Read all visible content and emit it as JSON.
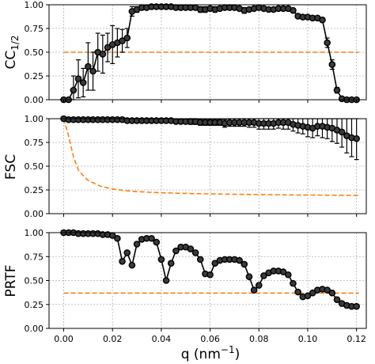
{
  "chart_data": [
    {
      "type": "line",
      "ylabel_main": "CC",
      "ylabel_sub": "1/2",
      "ylim": [
        0,
        1
      ],
      "yticks": [
        "0.00",
        "0.25",
        "0.50",
        "0.75",
        "1.00"
      ],
      "xlim": [
        -0.006,
        0.124
      ],
      "grid": true,
      "threshold": 0.5,
      "series": [
        {
          "style": "circles-with-errorbars",
          "color": "#000000",
          "x": [
            0.0,
            0.002,
            0.004,
            0.006,
            0.008,
            0.01,
            0.012,
            0.014,
            0.016,
            0.018,
            0.02,
            0.022,
            0.024,
            0.026,
            0.028,
            0.03,
            0.032,
            0.034,
            0.036,
            0.038,
            0.04,
            0.042,
            0.044,
            0.046,
            0.048,
            0.05,
            0.052,
            0.054,
            0.056,
            0.058,
            0.06,
            0.062,
            0.064,
            0.066,
            0.068,
            0.07,
            0.072,
            0.074,
            0.076,
            0.078,
            0.08,
            0.082,
            0.084,
            0.086,
            0.088,
            0.09,
            0.092,
            0.094,
            0.096,
            0.098,
            0.1,
            0.102,
            0.104,
            0.106,
            0.108,
            0.11,
            0.112,
            0.114,
            0.116,
            0.118,
            0.12
          ],
          "y": [
            0.0,
            0.0,
            0.1,
            0.22,
            0.18,
            0.35,
            0.3,
            0.5,
            0.48,
            0.55,
            0.58,
            0.6,
            0.62,
            0.65,
            0.93,
            0.95,
            0.97,
            0.97,
            0.98,
            0.98,
            0.98,
            0.98,
            0.98,
            0.97,
            0.97,
            0.97,
            0.97,
            0.97,
            0.95,
            0.95,
            0.96,
            0.95,
            0.96,
            0.97,
            0.97,
            0.97,
            0.96,
            0.94,
            0.95,
            0.96,
            0.97,
            0.96,
            0.95,
            0.95,
            0.96,
            0.96,
            0.96,
            0.94,
            0.88,
            0.87,
            0.87,
            0.86,
            0.86,
            0.84,
            0.6,
            0.37,
            0.1,
            0.01,
            0.0,
            0.0,
            0.0
          ],
          "err": [
            0.0,
            0.0,
            0.15,
            0.2,
            0.15,
            0.25,
            0.2,
            0.2,
            0.2,
            0.15,
            0.2,
            0.15,
            0.12,
            0.1,
            0.05,
            0.03,
            0.02,
            0.02,
            0.01,
            0.01,
            0.01,
            0.01,
            0.01,
            0.02,
            0.02,
            0.02,
            0.02,
            0.02,
            0.03,
            0.03,
            0.02,
            0.03,
            0.02,
            0.02,
            0.02,
            0.02,
            0.02,
            0.03,
            0.02,
            0.02,
            0.02,
            0.02,
            0.02,
            0.02,
            0.02,
            0.02,
            0.02,
            0.02,
            0.02,
            0.02,
            0.02,
            0.02,
            0.02,
            0.02,
            0.05,
            0.05,
            0.03,
            0.01,
            0.0,
            0.0,
            0.0
          ]
        },
        {
          "style": "dashed",
          "color": "#ff7f0e",
          "x": [
            0.0,
            0.121
          ],
          "y": [
            0.5,
            0.5
          ]
        }
      ]
    },
    {
      "type": "line",
      "ylabel_main": "FSC",
      "ylabel_sub": "",
      "ylim": [
        0,
        1
      ],
      "yticks": [
        "0.00",
        "0.25",
        "0.50",
        "0.75",
        "1.00"
      ],
      "xlim": [
        -0.006,
        0.124
      ],
      "grid": true,
      "series": [
        {
          "style": "circles-with-errorbars",
          "color": "#000000",
          "x": [
            0.0,
            0.002,
            0.004,
            0.006,
            0.008,
            0.01,
            0.012,
            0.014,
            0.016,
            0.018,
            0.02,
            0.022,
            0.024,
            0.026,
            0.028,
            0.03,
            0.032,
            0.034,
            0.036,
            0.038,
            0.04,
            0.042,
            0.044,
            0.046,
            0.048,
            0.05,
            0.052,
            0.054,
            0.056,
            0.058,
            0.06,
            0.062,
            0.064,
            0.066,
            0.068,
            0.07,
            0.072,
            0.074,
            0.076,
            0.078,
            0.08,
            0.082,
            0.084,
            0.086,
            0.088,
            0.09,
            0.092,
            0.094,
            0.096,
            0.098,
            0.1,
            0.102,
            0.104,
            0.106,
            0.108,
            0.11,
            0.112,
            0.114,
            0.116,
            0.118,
            0.12
          ],
          "y": [
            1.0,
            0.99,
            0.99,
            0.99,
            0.99,
            0.99,
            0.99,
            0.99,
            0.99,
            0.99,
            0.99,
            0.99,
            0.99,
            0.98,
            0.98,
            0.98,
            0.98,
            0.98,
            0.98,
            0.98,
            0.98,
            0.98,
            0.98,
            0.97,
            0.97,
            0.97,
            0.97,
            0.97,
            0.96,
            0.96,
            0.96,
            0.96,
            0.96,
            0.95,
            0.96,
            0.96,
            0.96,
            0.96,
            0.96,
            0.96,
            0.95,
            0.95,
            0.95,
            0.95,
            0.96,
            0.96,
            0.96,
            0.94,
            0.93,
            0.92,
            0.91,
            0.9,
            0.92,
            0.92,
            0.91,
            0.9,
            0.88,
            0.86,
            0.82,
            0.8,
            0.79
          ],
          "err": [
            0.0,
            0.0,
            0.0,
            0.0,
            0.0,
            0.0,
            0.0,
            0.01,
            0.01,
            0.01,
            0.01,
            0.01,
            0.01,
            0.01,
            0.01,
            0.01,
            0.02,
            0.02,
            0.02,
            0.02,
            0.02,
            0.02,
            0.02,
            0.02,
            0.02,
            0.02,
            0.03,
            0.03,
            0.03,
            0.03,
            0.03,
            0.03,
            0.03,
            0.04,
            0.04,
            0.04,
            0.04,
            0.04,
            0.05,
            0.05,
            0.06,
            0.06,
            0.06,
            0.06,
            0.06,
            0.07,
            0.07,
            0.07,
            0.08,
            0.08,
            0.1,
            0.1,
            0.1,
            0.12,
            0.12,
            0.14,
            0.14,
            0.16,
            0.18,
            0.2,
            0.22
          ]
        },
        {
          "style": "dashed",
          "color": "#ff7f0e",
          "x": [
            0.0,
            0.002,
            0.004,
            0.006,
            0.008,
            0.01,
            0.015,
            0.02,
            0.025,
            0.03,
            0.04,
            0.05,
            0.06,
            0.07,
            0.08,
            0.09,
            0.1,
            0.11,
            0.121
          ],
          "y": [
            1.0,
            0.82,
            0.6,
            0.46,
            0.4,
            0.35,
            0.29,
            0.26,
            0.243,
            0.232,
            0.22,
            0.213,
            0.208,
            0.204,
            0.201,
            0.198,
            0.196,
            0.194,
            0.192
          ]
        }
      ]
    },
    {
      "type": "line",
      "ylabel_main": "PRTF",
      "ylabel_sub": "",
      "ylim": [
        0,
        1
      ],
      "yticks": [
        "0.00",
        "0.25",
        "0.50",
        "0.75",
        "1.00"
      ],
      "xlim": [
        -0.006,
        0.124
      ],
      "xticks": [
        "0.00",
        "0.02",
        "0.04",
        "0.06",
        "0.08",
        "0.10",
        "0.12"
      ],
      "xlabel_main": "q (nm",
      "xlabel_sup": "−1",
      "xlabel_end": ")",
      "grid": true,
      "threshold": 0.368,
      "series": [
        {
          "style": "circles",
          "color": "#000000",
          "x": [
            0.0,
            0.002,
            0.004,
            0.006,
            0.008,
            0.01,
            0.012,
            0.014,
            0.016,
            0.018,
            0.02,
            0.022,
            0.024,
            0.026,
            0.028,
            0.03,
            0.032,
            0.034,
            0.036,
            0.038,
            0.04,
            0.042,
            0.044,
            0.046,
            0.048,
            0.05,
            0.052,
            0.054,
            0.056,
            0.058,
            0.06,
            0.062,
            0.064,
            0.066,
            0.068,
            0.07,
            0.072,
            0.074,
            0.076,
            0.078,
            0.08,
            0.082,
            0.084,
            0.086,
            0.088,
            0.09,
            0.092,
            0.094,
            0.096,
            0.098,
            0.1,
            0.102,
            0.104,
            0.106,
            0.108,
            0.11,
            0.112,
            0.114,
            0.116,
            0.118,
            0.12
          ],
          "y": [
            1.0,
            1.0,
            1.0,
            0.99,
            0.99,
            0.99,
            0.99,
            0.99,
            0.98,
            0.98,
            0.97,
            0.94,
            0.7,
            0.79,
            0.66,
            0.88,
            0.93,
            0.94,
            0.94,
            0.9,
            0.72,
            0.5,
            0.68,
            0.81,
            0.85,
            0.85,
            0.83,
            0.79,
            0.72,
            0.57,
            0.56,
            0.68,
            0.71,
            0.72,
            0.72,
            0.72,
            0.71,
            0.67,
            0.54,
            0.4,
            0.45,
            0.55,
            0.58,
            0.6,
            0.6,
            0.59,
            0.56,
            0.47,
            0.38,
            0.33,
            0.34,
            0.37,
            0.4,
            0.41,
            0.4,
            0.37,
            0.3,
            0.26,
            0.24,
            0.23,
            0.23
          ]
        },
        {
          "style": "dashed",
          "color": "#ff7f0e",
          "x": [
            0.0,
            0.121
          ],
          "y": [
            0.368,
            0.368
          ]
        }
      ]
    }
  ]
}
